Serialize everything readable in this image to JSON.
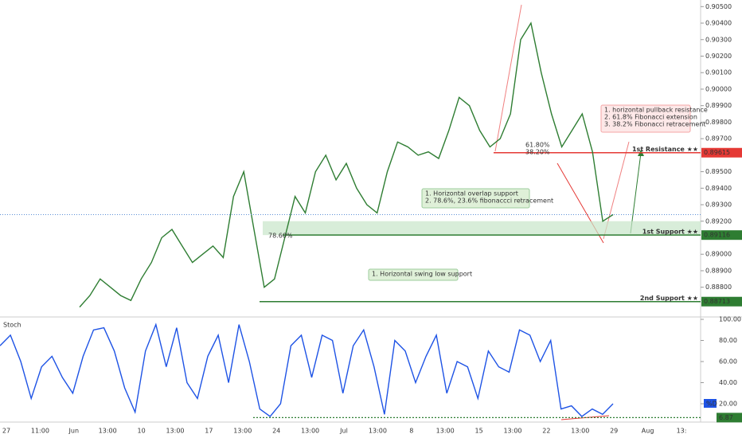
{
  "chart_data": [
    {
      "type": "line",
      "series": [
        {
          "color": "#2e7d32",
          "values": [
            0.8868,
            0.8875,
            0.8885,
            0.888,
            0.8875,
            0.8872,
            0.8885,
            0.8895,
            0.891,
            0.8915,
            0.8905,
            0.8895,
            0.89,
            0.8905,
            0.8898,
            0.8935,
            0.895,
            0.8915,
            0.888,
            0.8885,
            0.891,
            0.8935,
            0.8925,
            0.895,
            0.896,
            0.8945,
            0.8955,
            0.894,
            0.893,
            0.8925,
            0.895,
            0.8968,
            0.8965,
            0.896,
            0.8962,
            0.8958,
            0.8975,
            0.8995,
            0.899,
            0.8975,
            0.8965,
            0.897,
            0.8985,
            0.903,
            0.904,
            0.901,
            0.8985,
            0.8965,
            0.8975,
            0.8985,
            0.8962,
            0.892,
            0.8924
          ]
        }
      ],
      "ylim": [
        0.8862,
        0.9054
      ],
      "yticks": [
        {
          "value": 0.905,
          "label": "0.90500"
        },
        {
          "value": 0.904,
          "label": "0.90400"
        },
        {
          "value": 0.903,
          "label": "0.90300"
        },
        {
          "value": 0.902,
          "label": "0.90200"
        },
        {
          "value": 0.901,
          "label": "0.90100"
        },
        {
          "value": 0.9,
          "label": "0.90000"
        },
        {
          "value": 0.899,
          "label": "0.89900"
        },
        {
          "value": 0.898,
          "label": "0.89800"
        },
        {
          "value": 0.897,
          "label": "0.89700"
        },
        {
          "value": 0.895,
          "label": "0.89500"
        },
        {
          "value": 0.894,
          "label": "0.89400"
        },
        {
          "value": 0.893,
          "label": "0.89300"
        },
        {
          "value": 0.892,
          "label": "0.89200"
        },
        {
          "value": 0.89,
          "label": "0.89000"
        },
        {
          "value": 0.889,
          "label": "0.88900"
        },
        {
          "value": 0.888,
          "label": "0.88800"
        }
      ],
      "levels": [
        {
          "name": "1st Resistance ★★",
          "value": 0.89615,
          "color": "#e53935"
        },
        {
          "name": "1st Support ★★",
          "value": 0.89116,
          "color": "#2e7d32"
        },
        {
          "name": "2nd Support ★★",
          "value": 0.88713,
          "color": "#2e7d32"
        }
      ],
      "support_zone": [
        0.89116,
        0.892
      ],
      "annotations": [
        {
          "lines": [
            "1. horizontal pullback resistance",
            "2. 61.8% Fibonacci extension",
            "3. 38.2% Fibonacci retracement"
          ]
        },
        {
          "lines": [
            "1. Horizontal overlap support",
            "2. 78.6%, 23.6% fibonaccci retracement"
          ]
        },
        {
          "lines": [
            "1. Horizontal swing low support"
          ]
        }
      ],
      "fib_labels": [
        "61.80%",
        "38.20%",
        "78.60%"
      ],
      "x_labels": [
        "27",
        "11:00",
        "Jun",
        "13:00",
        "10",
        "13:00",
        "17",
        "13:00",
        "24",
        "13:00",
        "Jul",
        "13:00",
        "8",
        "13:00",
        "15",
        "13:00",
        "22",
        "13:00",
        "29",
        "Aug",
        "13:"
      ]
    },
    {
      "type": "line",
      "title": "Stoch",
      "series": [
        {
          "color": "#1e53e5",
          "values": [
            75,
            85,
            60,
            25,
            55,
            65,
            45,
            30,
            65,
            90,
            92,
            70,
            35,
            12,
            70,
            95,
            55,
            92,
            40,
            25,
            65,
            85,
            40,
            95,
            60,
            15,
            8,
            20,
            75,
            85,
            45,
            85,
            80,
            30,
            75,
            90,
            55,
            10,
            80,
            70,
            40,
            65,
            85,
            30,
            60,
            55,
            25,
            70,
            55,
            50,
            90,
            85,
            60,
            80,
            15,
            18,
            8,
            15,
            10,
            20
          ]
        }
      ],
      "ylim": [
        0,
        100
      ],
      "yticks": [
        {
          "value": 100,
          "label": "100.00"
        },
        {
          "value": 80,
          "label": "80.00"
        },
        {
          "value": 60,
          "label": "60.00"
        },
        {
          "value": 40,
          "label": "40.00"
        },
        {
          "value": 20,
          "label": "20.00"
        }
      ],
      "indicator": "%D",
      "current_value": 6.87
    }
  ]
}
